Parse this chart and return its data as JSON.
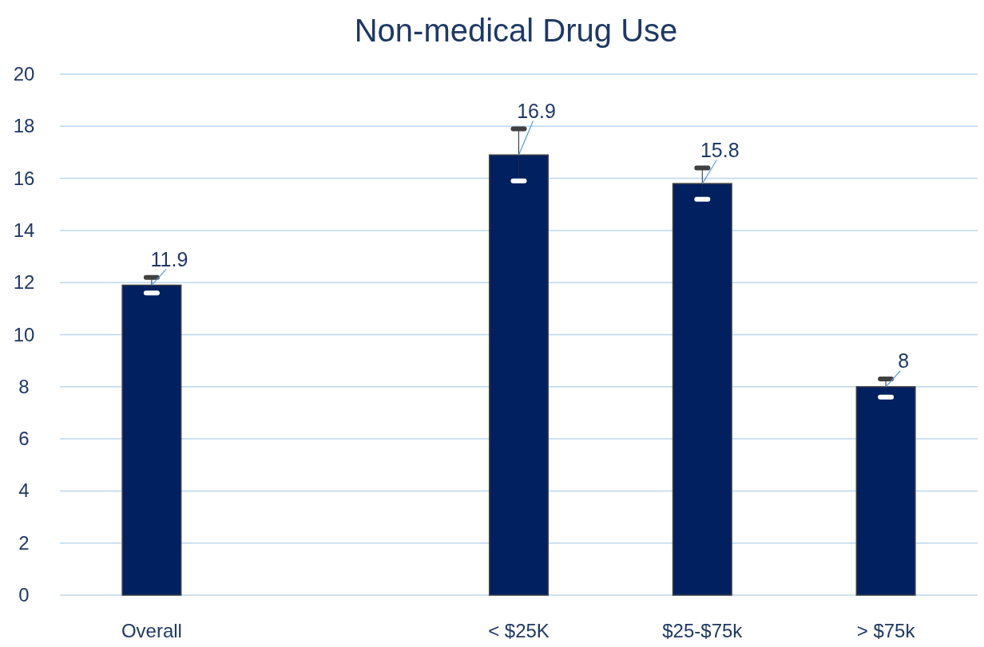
{
  "chart_data": {
    "type": "bar",
    "title": "Non-medical Drug Use",
    "categories": [
      "Overall",
      null,
      "< $25K",
      "$25-$75k",
      "> $75k"
    ],
    "values": [
      11.9,
      null,
      16.9,
      15.8,
      8
    ],
    "errors": [
      [
        11.6,
        12.2
      ],
      null,
      [
        15.9,
        17.9
      ],
      [
        15.2,
        16.4
      ],
      [
        7.6,
        8.3
      ]
    ],
    "color": "#002060",
    "data_labels": true,
    "ylim": [
      0,
      20
    ],
    "yticks": [
      0,
      2,
      4,
      6,
      8,
      10,
      12,
      14,
      16,
      18,
      20
    ],
    "grid": "y"
  }
}
